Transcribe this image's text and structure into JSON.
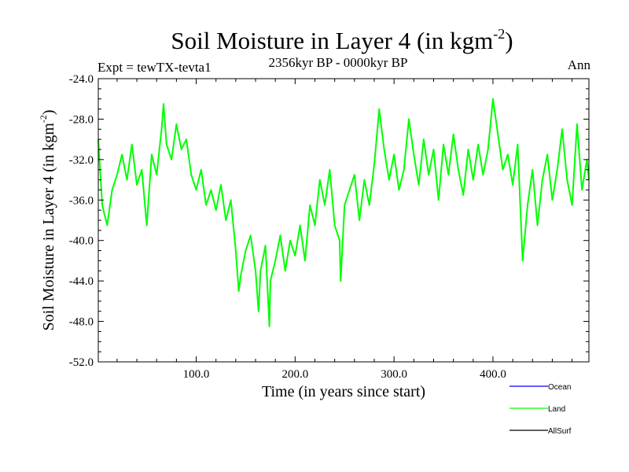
{
  "chart_data": {
    "type": "line",
    "title": "Soil Moisture in Layer 4 (in kgm",
    "title_superscript": "-2",
    "title_suffix": ")",
    "subtitle": "2356kyr BP - 0000kyr BP",
    "left_label": "Expt = tewTX-tevta1",
    "right_label": "Ann",
    "xlabel": "Time (in years since start)",
    "ylabel": "Soil Moisture in Layer 4 (in kgm",
    "ylabel_superscript": "-2",
    "ylabel_suffix": ")",
    "xlim": [
      1,
      497
    ],
    "ylim": [
      -52.0,
      -24.0
    ],
    "xticks": [
      100.0,
      200.0,
      300.0,
      400.0
    ],
    "xtick_labels": [
      "100.0",
      "200.0",
      "300.0",
      "400.0"
    ],
    "yticks": [
      -24.0,
      -28.0,
      -32.0,
      -36.0,
      -40.0,
      -44.0,
      -48.0,
      -52.0
    ],
    "ytick_labels": [
      "-24.0",
      "-28.0",
      "-32.0",
      "-36.0",
      "-40.0",
      "-44.0",
      "-48.0",
      "-52.0"
    ],
    "legend_position": "bottom-right",
    "series": [
      {
        "name": "Ocean",
        "color": "#0000ff",
        "values": []
      },
      {
        "name": "Land",
        "color": "#00ff00",
        "x": [
          1,
          5,
          10,
          15,
          20,
          25,
          30,
          35,
          40,
          45,
          50,
          55,
          60,
          65,
          67,
          70,
          75,
          80,
          85,
          90,
          95,
          100,
          105,
          110,
          115,
          120,
          125,
          130,
          135,
          140,
          143,
          145,
          150,
          155,
          160,
          163,
          165,
          170,
          174,
          175,
          180,
          185,
          190,
          195,
          200,
          205,
          210,
          215,
          220,
          225,
          230,
          235,
          240,
          245,
          246,
          250,
          255,
          260,
          265,
          270,
          275,
          280,
          285,
          290,
          295,
          300,
          305,
          310,
          315,
          320,
          325,
          330,
          335,
          340,
          345,
          350,
          355,
          360,
          365,
          370,
          375,
          380,
          385,
          390,
          395,
          400,
          405,
          410,
          415,
          420,
          425,
          430,
          435,
          440,
          445,
          450,
          455,
          460,
          465,
          470,
          475,
          480,
          485,
          490,
          495,
          497
        ],
        "values": [
          -30.0,
          -36.5,
          -38.5,
          -35.0,
          -33.5,
          -31.5,
          -34.0,
          -30.5,
          -34.5,
          -33.0,
          -38.5,
          -31.5,
          -33.5,
          -29.0,
          -26.5,
          -30.5,
          -32.0,
          -28.5,
          -31.0,
          -30.0,
          -33.5,
          -35.0,
          -33.0,
          -36.5,
          -35.0,
          -37.0,
          -34.5,
          -38.0,
          -36.0,
          -41.0,
          -45.0,
          -43.5,
          -41.0,
          -39.5,
          -43.0,
          -47.0,
          -43.0,
          -40.5,
          -48.5,
          -44.0,
          -42.0,
          -39.5,
          -43.0,
          -40.0,
          -41.5,
          -38.5,
          -42.0,
          -36.5,
          -38.5,
          -34.0,
          -36.5,
          -33.0,
          -38.5,
          -40.0,
          -44.0,
          -36.5,
          -35.0,
          -33.5,
          -38.0,
          -34.0,
          -36.5,
          -32.5,
          -27.0,
          -31.0,
          -34.0,
          -31.5,
          -35.0,
          -33.0,
          -28.0,
          -31.5,
          -34.5,
          -30.0,
          -33.5,
          -31.0,
          -36.0,
          -30.5,
          -33.5,
          -29.5,
          -33.0,
          -35.5,
          -31.0,
          -34.0,
          -30.5,
          -33.5,
          -31.0,
          -26.0,
          -29.5,
          -33.0,
          -31.5,
          -34.5,
          -30.5,
          -42.0,
          -36.5,
          -33.0,
          -38.5,
          -34.0,
          -31.5,
          -36.0,
          -33.0,
          -29.0,
          -34.0,
          -36.5,
          -28.5,
          -35.0,
          -32.0,
          -34.0
        ]
      },
      {
        "name": "AllSurf",
        "color": "#000000",
        "values": []
      }
    ]
  }
}
